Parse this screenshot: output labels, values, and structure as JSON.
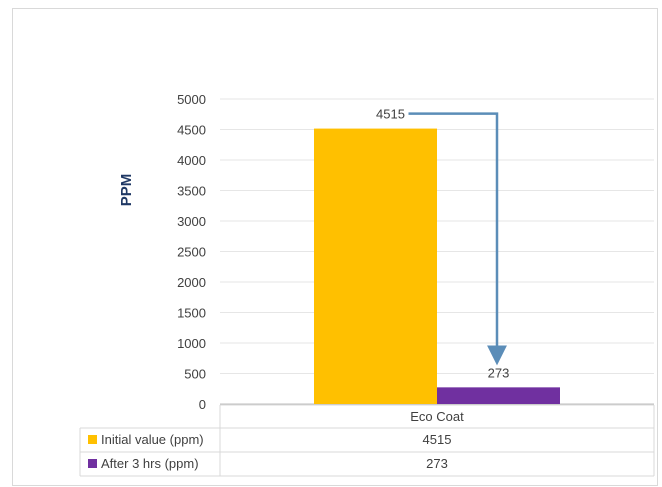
{
  "chart_data": {
    "type": "bar",
    "title": "",
    "xlabel": "",
    "ylabel": "PPM",
    "ylim": [
      0,
      5000
    ],
    "yticks": [
      0,
      500,
      1000,
      1500,
      2000,
      2500,
      3000,
      3500,
      4000,
      4500,
      5000
    ],
    "categories": [
      "Eco Coat"
    ],
    "series": [
      {
        "name": "Initial value (ppm)",
        "values": [
          4515
        ],
        "color": "#FFC000",
        "label": "4515",
        "table_value": "4515"
      },
      {
        "name": "After 3 hrs (ppm)",
        "values": [
          273
        ],
        "color": "#7030A0",
        "label": "273",
        "table_value": "273"
      }
    ],
    "grid": true,
    "annotation": "arrow from 4515 down to 273",
    "legend": "data table below chart"
  }
}
